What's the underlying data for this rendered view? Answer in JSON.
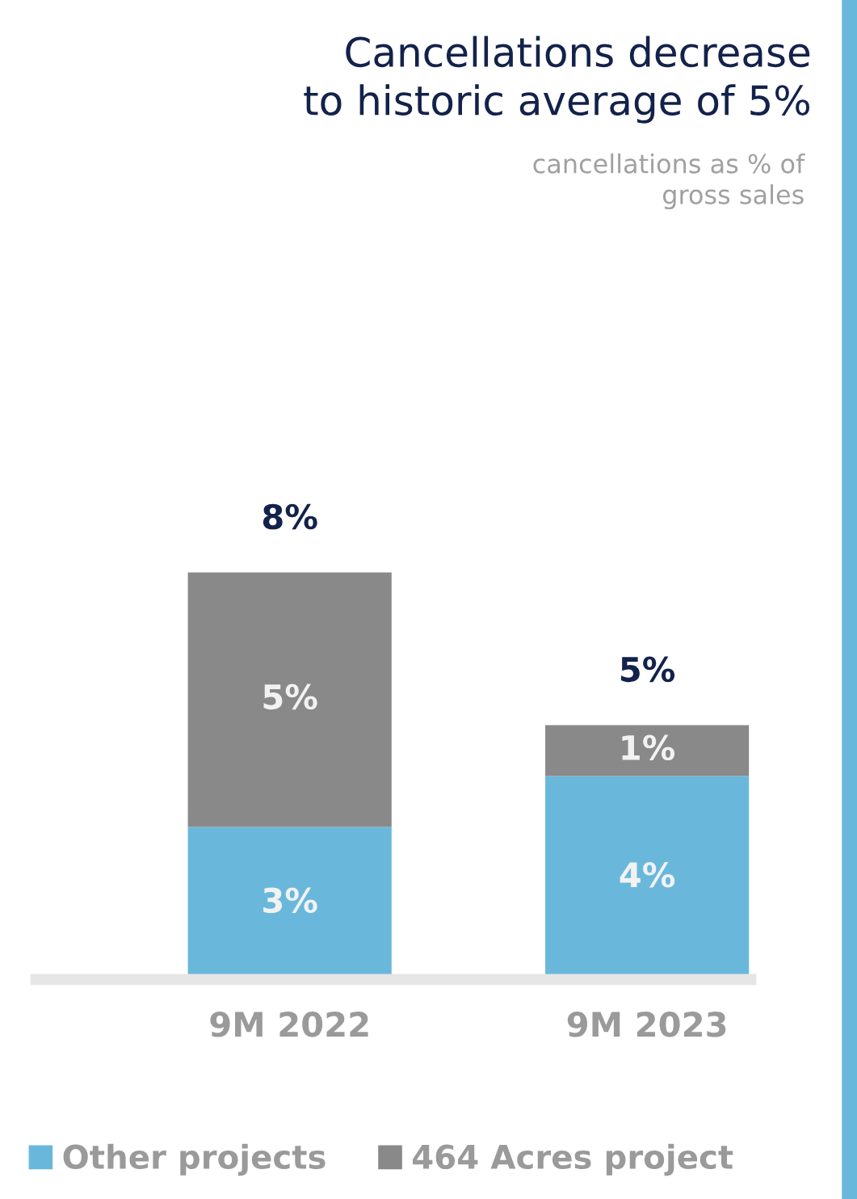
{
  "chart_data": {
    "type": "bar",
    "stacked": true,
    "title": "Cancellations decrease\nto historic average of 5%",
    "subtitle": "cancellations as % of\ngross sales",
    "categories": [
      "9M 2022",
      "9M 2023"
    ],
    "series": [
      {
        "name": "Other projects",
        "color": "#69b8db",
        "values": [
          3,
          4
        ],
        "value_labels": [
          "3%",
          "4%"
        ]
      },
      {
        "name": "464 Acres project",
        "color": "#898989",
        "values": [
          5,
          1
        ],
        "value_labels": [
          "5%",
          "1%"
        ]
      }
    ],
    "totals": [
      "8%",
      "5%"
    ],
    "legend": "bottom",
    "grid": false
  }
}
